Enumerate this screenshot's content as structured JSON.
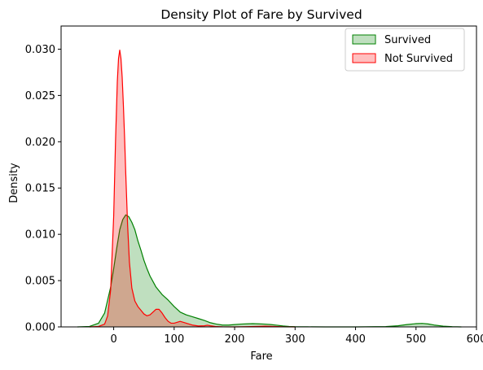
{
  "chart_data": {
    "type": "area",
    "title": "Density Plot of Fare by Survived",
    "xlabel": "Fare",
    "ylabel": "Density",
    "xlim": [
      -87,
      600
    ],
    "ylim": [
      0,
      0.0325
    ],
    "xticks": [
      0,
      100,
      200,
      300,
      400,
      500,
      600
    ],
    "xtick_labels": [
      "0",
      "100",
      "200",
      "300",
      "400",
      "500",
      "600"
    ],
    "yticks": [
      0.0,
      0.005,
      0.01,
      0.015,
      0.02,
      0.025,
      0.03
    ],
    "ytick_labels": [
      "0.000",
      "0.005",
      "0.010",
      "0.015",
      "0.020",
      "0.025",
      "0.030"
    ],
    "grid": false,
    "legend_position": "top-right",
    "series": [
      {
        "name": "Survived",
        "color": "#008000",
        "fill": "#008000",
        "fill_opacity": 0.25,
        "x": [
          -60,
          -40,
          -25,
          -15,
          -5,
          0,
          5,
          10,
          15,
          20,
          25,
          30,
          35,
          40,
          45,
          50,
          55,
          60,
          65,
          70,
          80,
          90,
          100,
          110,
          120,
          130,
          140,
          150,
          160,
          170,
          180,
          190,
          200,
          210,
          220,
          230,
          240,
          250,
          260,
          270,
          280,
          290,
          300,
          320,
          350,
          400,
          450,
          470,
          485,
          500,
          510,
          520,
          530,
          545,
          560,
          575
        ],
        "values": [
          0.0,
          5e-05,
          0.0004,
          0.0015,
          0.0043,
          0.0063,
          0.0085,
          0.0105,
          0.0116,
          0.0121,
          0.0119,
          0.0113,
          0.0105,
          0.0093,
          0.0083,
          0.0072,
          0.0063,
          0.0055,
          0.0049,
          0.0043,
          0.0035,
          0.0029,
          0.0022,
          0.0016,
          0.0013,
          0.0011,
          0.0009,
          0.0007,
          0.00045,
          0.0003,
          0.0002,
          0.0002,
          0.00025,
          0.0003,
          0.00033,
          0.00035,
          0.00033,
          0.0003,
          0.00025,
          0.00018,
          0.0001,
          5e-05,
          2e-05,
          1e-05,
          0.0,
          0.0,
          3e-05,
          0.00012,
          0.00025,
          0.00035,
          0.00038,
          0.00032,
          0.0002,
          8e-05,
          2e-05,
          0.0
        ]
      },
      {
        "name": "Not Survived",
        "color": "#ff0000",
        "fill": "#ff0000",
        "fill_opacity": 0.25,
        "x": [
          -40,
          -25,
          -15,
          -10,
          -5,
          0,
          3,
          6,
          8,
          10,
          12,
          14,
          16,
          18,
          20,
          23,
          26,
          30,
          35,
          40,
          45,
          50,
          55,
          60,
          65,
          70,
          75,
          80,
          85,
          90,
          95,
          100,
          105,
          110,
          115,
          120,
          125,
          130,
          140,
          150,
          155,
          160,
          170,
          180,
          200,
          220,
          240,
          250,
          260,
          270,
          280,
          300
        ],
        "values": [
          0.0,
          5e-05,
          0.0003,
          0.0012,
          0.004,
          0.012,
          0.02,
          0.0265,
          0.029,
          0.0299,
          0.029,
          0.027,
          0.024,
          0.0205,
          0.0165,
          0.011,
          0.007,
          0.0042,
          0.0028,
          0.0022,
          0.0018,
          0.0014,
          0.0012,
          0.0013,
          0.0016,
          0.0019,
          0.0019,
          0.0015,
          0.001,
          0.0006,
          0.0004,
          0.0004,
          0.0005,
          0.0006,
          0.0005,
          0.0004,
          0.0003,
          0.0002,
          0.0001,
          0.00012,
          0.00018,
          0.00012,
          3e-05,
          1e-05,
          0.0,
          2e-05,
          6e-05,
          8e-05,
          6e-05,
          3e-05,
          1e-05,
          0.0
        ]
      }
    ]
  }
}
